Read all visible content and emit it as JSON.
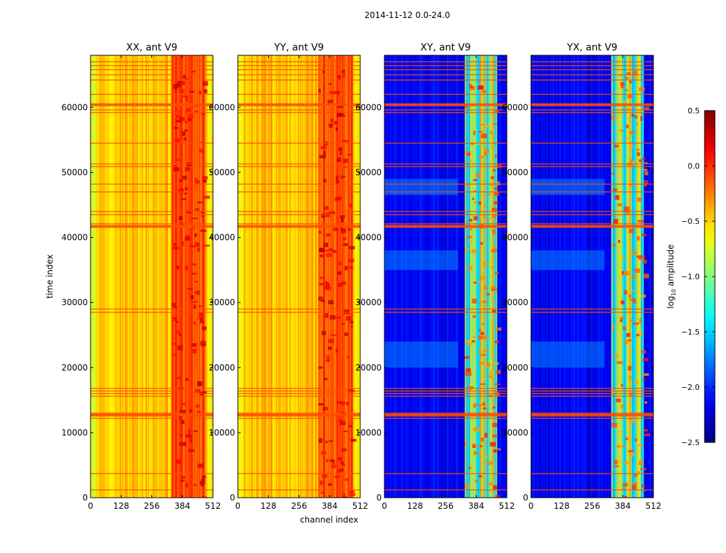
{
  "suptitle": "2014-11-12 0.0-24.0",
  "chart_data": {
    "type": "heatmap",
    "xlabel": "channel index",
    "ylabel": "time index",
    "xlim": [
      0,
      512
    ],
    "ylim": [
      0,
      68000
    ],
    "xticks": [
      0,
      128,
      256,
      384,
      512
    ],
    "yticks": [
      0,
      10000,
      20000,
      30000,
      40000,
      50000,
      60000
    ],
    "panels": [
      {
        "title": "XX, ant V9",
        "kind": "auto"
      },
      {
        "title": "YY, ant V9",
        "kind": "auto"
      },
      {
        "title": "XY, ant V9",
        "kind": "cross"
      },
      {
        "title": "YX, ant V9",
        "kind": "cross"
      }
    ],
    "colorbar": {
      "label_prefix": "log",
      "label_sub": "10",
      "label_suffix": " amplitude",
      "range": [
        -2.5,
        0.5
      ],
      "ticks": [
        0.5,
        0.0,
        -0.5,
        -1.0,
        -1.5,
        -2.0,
        -2.5
      ],
      "tick_labels": [
        "0.5",
        "0.0",
        "−0.5",
        "−1.0",
        "−1.5",
        "−2.0",
        "−2.5"
      ],
      "colormap": "jet"
    },
    "flagged_time_rows": [
      1200,
      3700,
      12200,
      12700,
      13000,
      15600,
      16000,
      16400,
      16800,
      28500,
      29000,
      41700,
      42100,
      43500,
      44000,
      47000,
      48200,
      50900,
      51300,
      54500,
      59200,
      59600,
      60400,
      62000,
      64200,
      65000,
      65800,
      66400,
      67000
    ],
    "flag_color": "#ff4d00"
  }
}
